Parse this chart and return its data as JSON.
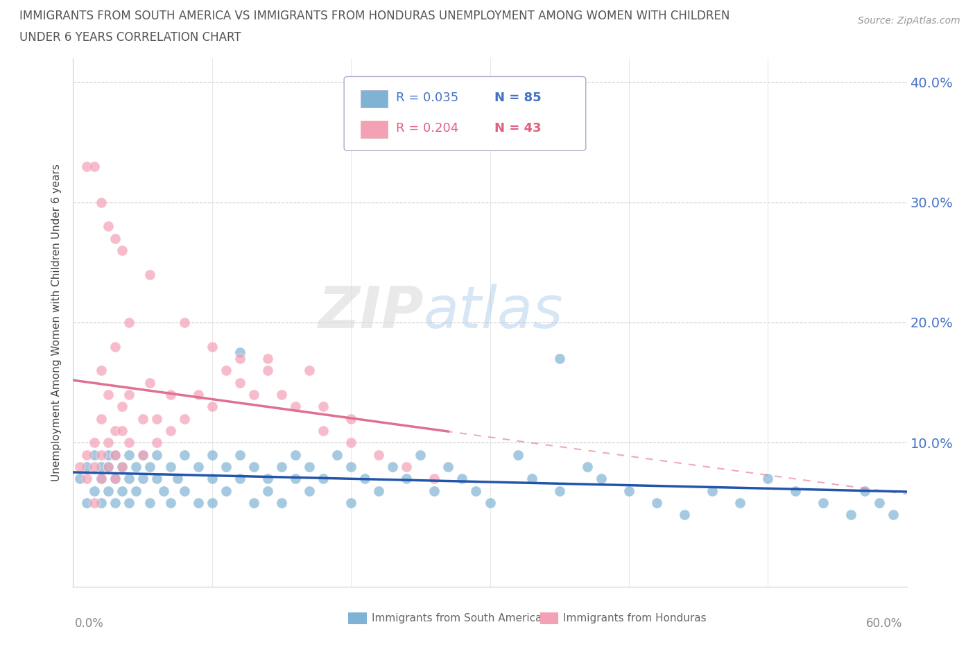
{
  "title_line1": "IMMIGRANTS FROM SOUTH AMERICA VS IMMIGRANTS FROM HONDURAS UNEMPLOYMENT AMONG WOMEN WITH CHILDREN",
  "title_line2": "UNDER 6 YEARS CORRELATION CHART",
  "source": "Source: ZipAtlas.com",
  "ylabel": "Unemployment Among Women with Children Under 6 years",
  "xlim": [
    0.0,
    0.6
  ],
  "ylim": [
    -0.02,
    0.42
  ],
  "color_blue": "#7fb3d3",
  "color_pink": "#f4a0b5",
  "color_blue_text": "#4472c4",
  "color_pink_text": "#e06080",
  "color_line_blue": "#2255aa",
  "color_line_pink": "#e07090",
  "watermark_zip": "ZIP",
  "watermark_atlas": "atlas",
  "legend_items": [
    {
      "r": "R = 0.035",
      "n": "N = 85",
      "color_box": "#7fb3d3",
      "color_text": "#4472c4"
    },
    {
      "r": "R = 0.204",
      "n": "N = 43",
      "color_box": "#f4a0b5",
      "color_text": "#e06080"
    }
  ],
  "bottom_legend": [
    {
      "label": "Immigrants from South America",
      "color": "#7fb3d3"
    },
    {
      "label": "Immigrants from Honduras",
      "color": "#f4a0b5"
    }
  ],
  "sa_x": [
    0.005,
    0.01,
    0.01,
    0.015,
    0.015,
    0.02,
    0.02,
    0.02,
    0.025,
    0.025,
    0.025,
    0.03,
    0.03,
    0.03,
    0.035,
    0.035,
    0.04,
    0.04,
    0.04,
    0.045,
    0.045,
    0.05,
    0.05,
    0.055,
    0.055,
    0.06,
    0.06,
    0.065,
    0.07,
    0.07,
    0.075,
    0.08,
    0.08,
    0.09,
    0.09,
    0.1,
    0.1,
    0.1,
    0.11,
    0.11,
    0.12,
    0.12,
    0.13,
    0.13,
    0.14,
    0.14,
    0.15,
    0.15,
    0.16,
    0.16,
    0.17,
    0.17,
    0.18,
    0.19,
    0.2,
    0.2,
    0.21,
    0.22,
    0.23,
    0.24,
    0.25,
    0.26,
    0.27,
    0.28,
    0.29,
    0.3,
    0.32,
    0.33,
    0.35,
    0.37,
    0.38,
    0.4,
    0.42,
    0.44,
    0.46,
    0.48,
    0.5,
    0.52,
    0.54,
    0.56,
    0.57,
    0.58,
    0.59,
    0.12,
    0.35
  ],
  "sa_y": [
    0.07,
    0.08,
    0.05,
    0.09,
    0.06,
    0.07,
    0.08,
    0.05,
    0.09,
    0.08,
    0.06,
    0.07,
    0.09,
    0.05,
    0.08,
    0.06,
    0.09,
    0.07,
    0.05,
    0.08,
    0.06,
    0.09,
    0.07,
    0.08,
    0.05,
    0.07,
    0.09,
    0.06,
    0.08,
    0.05,
    0.07,
    0.09,
    0.06,
    0.08,
    0.05,
    0.09,
    0.07,
    0.05,
    0.08,
    0.06,
    0.09,
    0.07,
    0.08,
    0.05,
    0.07,
    0.06,
    0.08,
    0.05,
    0.09,
    0.07,
    0.08,
    0.06,
    0.07,
    0.09,
    0.08,
    0.05,
    0.07,
    0.06,
    0.08,
    0.07,
    0.09,
    0.06,
    0.08,
    0.07,
    0.06,
    0.05,
    0.09,
    0.07,
    0.06,
    0.08,
    0.07,
    0.06,
    0.05,
    0.04,
    0.06,
    0.05,
    0.07,
    0.06,
    0.05,
    0.04,
    0.06,
    0.05,
    0.04,
    0.175,
    0.17
  ],
  "hon_x": [
    0.005,
    0.01,
    0.01,
    0.015,
    0.015,
    0.015,
    0.02,
    0.02,
    0.02,
    0.025,
    0.025,
    0.03,
    0.03,
    0.03,
    0.035,
    0.035,
    0.035,
    0.04,
    0.04,
    0.05,
    0.05,
    0.055,
    0.06,
    0.06,
    0.07,
    0.07,
    0.08,
    0.09,
    0.1,
    0.11,
    0.12,
    0.13,
    0.14,
    0.15,
    0.16,
    0.17,
    0.18,
    0.18,
    0.2,
    0.2,
    0.22,
    0.24,
    0.26
  ],
  "hon_y": [
    0.08,
    0.09,
    0.07,
    0.1,
    0.08,
    0.05,
    0.09,
    0.07,
    0.12,
    0.1,
    0.08,
    0.11,
    0.09,
    0.07,
    0.13,
    0.11,
    0.08,
    0.14,
    0.1,
    0.12,
    0.09,
    0.15,
    0.12,
    0.1,
    0.14,
    0.11,
    0.12,
    0.14,
    0.13,
    0.16,
    0.15,
    0.14,
    0.16,
    0.14,
    0.13,
    0.16,
    0.13,
    0.11,
    0.12,
    0.1,
    0.09,
    0.08,
    0.07
  ],
  "hon_outliers_x": [
    0.01,
    0.015,
    0.02,
    0.025,
    0.03,
    0.035,
    0.04,
    0.055,
    0.08,
    0.1,
    0.12,
    0.14,
    0.02,
    0.025,
    0.03
  ],
  "hon_outliers_y": [
    0.33,
    0.33,
    0.3,
    0.28,
    0.27,
    0.26,
    0.2,
    0.24,
    0.2,
    0.18,
    0.17,
    0.17,
    0.16,
    0.14,
    0.18
  ]
}
